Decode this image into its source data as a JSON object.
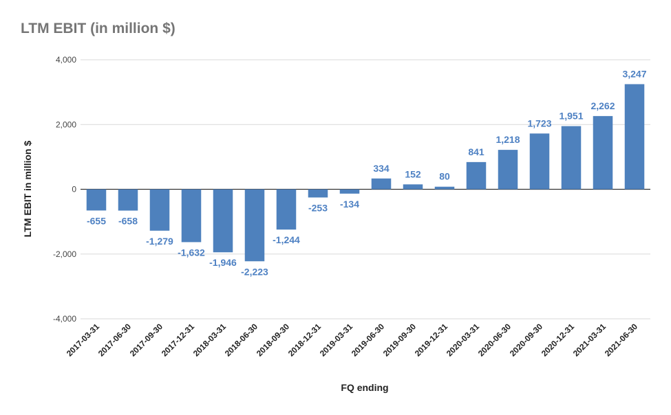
{
  "chart_data": {
    "type": "bar",
    "title": "LTM EBIT (in million $)",
    "xlabel": "FQ ending",
    "ylabel": "LTM EBIT in million $",
    "ylim": [
      -4000,
      4000
    ],
    "yticks": [
      4000,
      2000,
      0,
      -2000,
      -4000
    ],
    "ytick_labels": [
      "4,000",
      "2,000",
      "0",
      "-2,000",
      "-4,000"
    ],
    "grid": true,
    "legend": "none",
    "bar_color": "#4e81bd",
    "label_color": "#4e81c3",
    "categories": [
      "2017-03-31",
      "2017-06-30",
      "2017-09-30",
      "2017-12-31",
      "2018-03-31",
      "2018-06-30",
      "2018-09-30",
      "2018-12-31",
      "2019-03-31",
      "2019-06-30",
      "2019-09-30",
      "2019-12-31",
      "2020-03-31",
      "2020-06-30",
      "2020-09-30",
      "2020-12-31",
      "2021-03-31",
      "2021-06-30"
    ],
    "values": [
      -655,
      -658,
      -1279,
      -1632,
      -1946,
      -2223,
      -1244,
      -253,
      -134,
      334,
      152,
      80,
      841,
      1218,
      1723,
      1951,
      2262,
      3247
    ],
    "value_labels": [
      "-655",
      "-658",
      "-1,279",
      "-1,632",
      "-1,946",
      "-2,223",
      "-1,244",
      "-253",
      "-134",
      "334",
      "152",
      "80",
      "841",
      "1,218",
      "1,723",
      "1,951",
      "2,262",
      "3,247"
    ]
  }
}
